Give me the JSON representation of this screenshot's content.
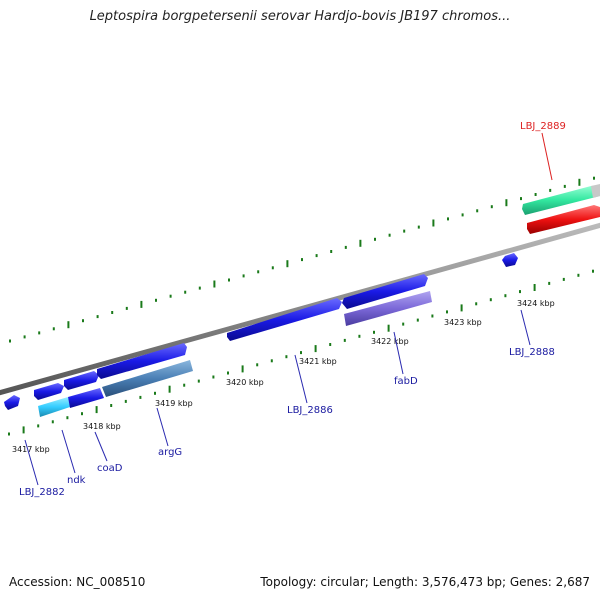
{
  "title": "Leptospira borgpetersenii serovar Hardjo-bovis JB197 chromos...",
  "footer": {
    "accession": "Accession: NC_008510",
    "summary": "Topology: circular; Length: 3,576,473 bp; Genes: 2,687"
  },
  "tick_labels": [
    "3417 kbp",
    "3418 kbp",
    "3419 kbp",
    "3420 kbp",
    "3421 kbp",
    "3422 kbp",
    "3423 kbp",
    "3424 kbp"
  ],
  "gene_labels": [
    "LBJ_2882",
    "ndk",
    "coaD",
    "argG",
    "LBJ_2886",
    "fabD",
    "LBJ_2888",
    "LBJ_2889"
  ],
  "colors": {
    "blue_gene": "#1a1ae6",
    "cyan_gene": "#33ccff",
    "steel_gene": "#4a7fb5",
    "purple_gene": "#7b68d8",
    "red_gene": "#ee1111",
    "green_gene": "#33e8a0",
    "backbone": "#888888",
    "tick": "#1a7a1a",
    "label_blue": "#1a1aa0",
    "label_red": "#dd2222"
  }
}
